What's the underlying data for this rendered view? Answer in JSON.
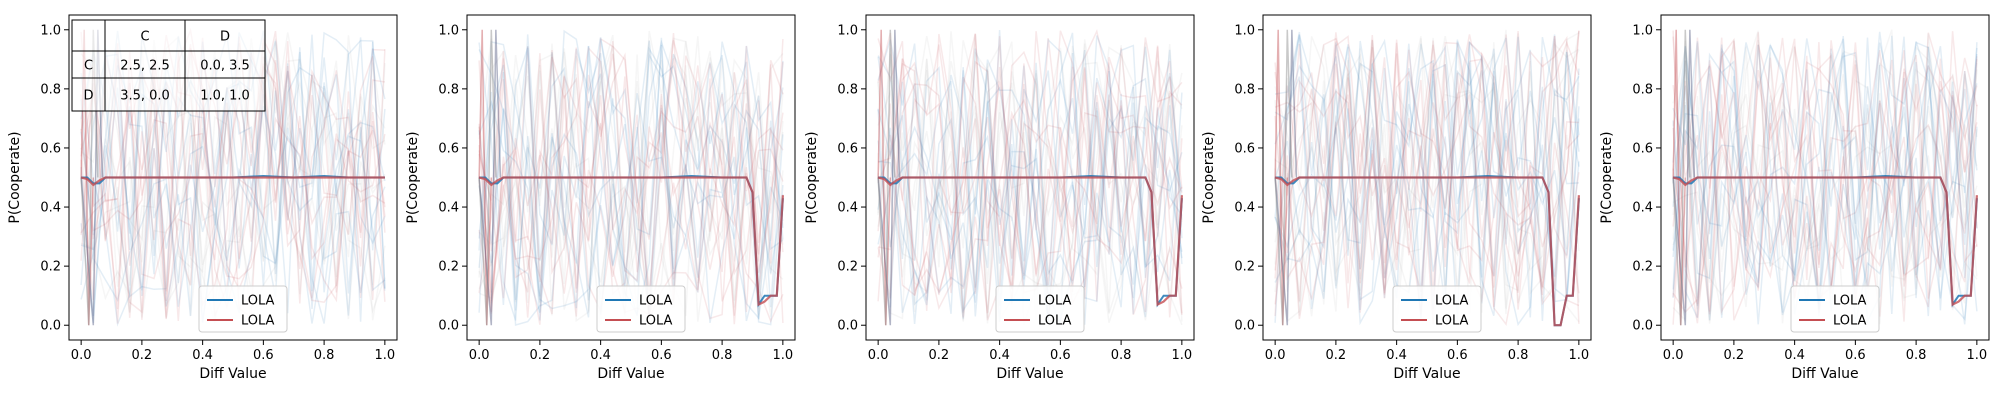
{
  "chart_data": [
    {
      "type": "line",
      "xlabel": "Diff Value",
      "ylabel": "P(Cooperate)",
      "xlim": [
        -0.04,
        1.04
      ],
      "ylim": [
        -0.05,
        1.05
      ],
      "xticks": [
        "0.0",
        "0.2",
        "0.4",
        "0.6",
        "0.8",
        "1.0"
      ],
      "yticks": [
        "0.0",
        "0.2",
        "0.4",
        "0.6",
        "0.8",
        "1.0"
      ],
      "grid": false,
      "legend_position": "bottom-center",
      "series": [
        {
          "name": "LOLA",
          "color": "#1f77b4",
          "x": [
            0.0,
            0.02,
            0.04,
            0.06,
            0.08,
            0.1,
            0.2,
            0.3,
            0.4,
            0.5,
            0.6,
            0.7,
            0.8,
            0.88,
            0.9,
            0.92,
            0.94,
            0.96,
            0.98,
            1.0
          ],
          "y": [
            0.5,
            0.5,
            0.48,
            0.48,
            0.5,
            0.5,
            0.5,
            0.5,
            0.5,
            0.5,
            0.505,
            0.5,
            0.505,
            0.5,
            0.5,
            0.5,
            0.5,
            0.5,
            0.5,
            0.5
          ]
        },
        {
          "name": "LOLA",
          "color": "#c44e52",
          "x": [
            0.0,
            0.02,
            0.04,
            0.06,
            0.08,
            0.1,
            0.2,
            0.3,
            0.4,
            0.5,
            0.6,
            0.7,
            0.8,
            0.88,
            0.9,
            0.92,
            0.94,
            0.96,
            0.98,
            1.0
          ],
          "y": [
            0.5,
            0.495,
            0.475,
            0.49,
            0.5,
            0.5,
            0.5,
            0.5,
            0.5,
            0.5,
            0.5,
            0.5,
            0.5,
            0.5,
            0.5,
            0.5,
            0.5,
            0.5,
            0.5,
            0.5
          ]
        }
      ],
      "payoff_table": {
        "header": [
          "",
          "C",
          "D"
        ],
        "rows": [
          [
            "C",
            "2.5, 2.5",
            "0.0, 3.5"
          ],
          [
            "D",
            "3.5, 0.0",
            "1.0, 1.0"
          ]
        ]
      }
    },
    {
      "type": "line",
      "xlabel": "Diff Value",
      "ylabel": "P(Cooperate)",
      "xlim": [
        -0.04,
        1.04
      ],
      "ylim": [
        -0.05,
        1.05
      ],
      "xticks": [
        "0.0",
        "0.2",
        "0.4",
        "0.6",
        "0.8",
        "1.0"
      ],
      "yticks": [
        "0.0",
        "0.2",
        "0.4",
        "0.6",
        "0.8",
        "1.0"
      ],
      "grid": false,
      "legend_position": "bottom-center",
      "series": [
        {
          "name": "LOLA",
          "color": "#1f77b4",
          "x": [
            0.0,
            0.02,
            0.04,
            0.06,
            0.08,
            0.1,
            0.2,
            0.3,
            0.4,
            0.5,
            0.6,
            0.7,
            0.8,
            0.88,
            0.9,
            0.92,
            0.94,
            0.96,
            0.98,
            1.0
          ],
          "y": [
            0.5,
            0.5,
            0.48,
            0.48,
            0.5,
            0.5,
            0.5,
            0.5,
            0.5,
            0.5,
            0.5,
            0.505,
            0.5,
            0.5,
            0.45,
            0.07,
            0.1,
            0.1,
            0.1,
            0.43
          ]
        },
        {
          "name": "LOLA",
          "color": "#c44e52",
          "x": [
            0.0,
            0.02,
            0.04,
            0.06,
            0.08,
            0.1,
            0.2,
            0.3,
            0.4,
            0.5,
            0.6,
            0.7,
            0.8,
            0.88,
            0.9,
            0.92,
            0.94,
            0.96,
            0.98,
            1.0
          ],
          "y": [
            0.5,
            0.495,
            0.475,
            0.49,
            0.5,
            0.5,
            0.5,
            0.5,
            0.5,
            0.5,
            0.5,
            0.5,
            0.5,
            0.5,
            0.45,
            0.07,
            0.08,
            0.1,
            0.1,
            0.44
          ]
        }
      ]
    },
    {
      "type": "line",
      "xlabel": "Diff Value",
      "ylabel": "P(Cooperate)",
      "xlim": [
        -0.04,
        1.04
      ],
      "ylim": [
        -0.05,
        1.05
      ],
      "xticks": [
        "0.0",
        "0.2",
        "0.4",
        "0.6",
        "0.8",
        "1.0"
      ],
      "yticks": [
        "0.0",
        "0.2",
        "0.4",
        "0.6",
        "0.8",
        "1.0"
      ],
      "grid": false,
      "legend_position": "bottom-center",
      "series": [
        {
          "name": "LOLA",
          "color": "#1f77b4",
          "x": [
            0.0,
            0.02,
            0.04,
            0.06,
            0.08,
            0.1,
            0.2,
            0.3,
            0.4,
            0.5,
            0.6,
            0.7,
            0.8,
            0.88,
            0.9,
            0.92,
            0.94,
            0.96,
            0.98,
            1.0
          ],
          "y": [
            0.5,
            0.5,
            0.48,
            0.48,
            0.5,
            0.5,
            0.5,
            0.5,
            0.5,
            0.5,
            0.5,
            0.505,
            0.5,
            0.5,
            0.45,
            0.07,
            0.1,
            0.1,
            0.1,
            0.43
          ]
        },
        {
          "name": "LOLA",
          "color": "#c44e52",
          "x": [
            0.0,
            0.02,
            0.04,
            0.06,
            0.08,
            0.1,
            0.2,
            0.3,
            0.4,
            0.5,
            0.6,
            0.7,
            0.8,
            0.88,
            0.9,
            0.92,
            0.94,
            0.96,
            0.98,
            1.0
          ],
          "y": [
            0.5,
            0.495,
            0.475,
            0.49,
            0.5,
            0.5,
            0.5,
            0.5,
            0.5,
            0.5,
            0.5,
            0.5,
            0.5,
            0.5,
            0.45,
            0.07,
            0.08,
            0.1,
            0.1,
            0.44
          ]
        }
      ]
    },
    {
      "type": "line",
      "xlabel": "Diff Value",
      "ylabel": "P(Cooperate)",
      "xlim": [
        -0.04,
        1.04
      ],
      "ylim": [
        -0.05,
        1.05
      ],
      "xticks": [
        "0.0",
        "0.2",
        "0.4",
        "0.6",
        "0.8",
        "1.0"
      ],
      "yticks": [
        "0.0",
        "0.2",
        "0.4",
        "0.6",
        "0.8",
        "1.0"
      ],
      "grid": false,
      "legend_position": "bottom-center",
      "series": [
        {
          "name": "LOLA",
          "color": "#1f77b4",
          "x": [
            0.0,
            0.02,
            0.04,
            0.06,
            0.08,
            0.1,
            0.2,
            0.3,
            0.4,
            0.5,
            0.6,
            0.7,
            0.8,
            0.88,
            0.9,
            0.92,
            0.94,
            0.96,
            0.98,
            1.0
          ],
          "y": [
            0.5,
            0.5,
            0.48,
            0.48,
            0.5,
            0.5,
            0.5,
            0.5,
            0.5,
            0.5,
            0.5,
            0.505,
            0.5,
            0.5,
            0.45,
            0.0,
            0.0,
            0.1,
            0.1,
            0.43
          ]
        },
        {
          "name": "LOLA",
          "color": "#c44e52",
          "x": [
            0.0,
            0.02,
            0.04,
            0.06,
            0.08,
            0.1,
            0.2,
            0.3,
            0.4,
            0.5,
            0.6,
            0.7,
            0.8,
            0.88,
            0.9,
            0.92,
            0.94,
            0.96,
            0.98,
            1.0
          ],
          "y": [
            0.5,
            0.495,
            0.475,
            0.49,
            0.5,
            0.5,
            0.5,
            0.5,
            0.5,
            0.5,
            0.5,
            0.5,
            0.5,
            0.5,
            0.45,
            0.0,
            0.0,
            0.1,
            0.1,
            0.44
          ]
        }
      ]
    },
    {
      "type": "line",
      "xlabel": "Diff Value",
      "ylabel": "P(Cooperate)",
      "xlim": [
        -0.04,
        1.04
      ],
      "ylim": [
        -0.05,
        1.05
      ],
      "xticks": [
        "0.0",
        "0.2",
        "0.4",
        "0.6",
        "0.8",
        "1.0"
      ],
      "yticks": [
        "0.0",
        "0.2",
        "0.4",
        "0.6",
        "0.8",
        "1.0"
      ],
      "grid": false,
      "legend_position": "bottom-center",
      "series": [
        {
          "name": "LOLA",
          "color": "#1f77b4",
          "x": [
            0.0,
            0.02,
            0.04,
            0.06,
            0.08,
            0.1,
            0.2,
            0.3,
            0.4,
            0.5,
            0.6,
            0.7,
            0.8,
            0.88,
            0.9,
            0.92,
            0.94,
            0.96,
            0.98,
            1.0
          ],
          "y": [
            0.5,
            0.5,
            0.48,
            0.48,
            0.5,
            0.5,
            0.5,
            0.5,
            0.5,
            0.5,
            0.5,
            0.505,
            0.5,
            0.5,
            0.45,
            0.07,
            0.1,
            0.1,
            0.1,
            0.43
          ]
        },
        {
          "name": "LOLA",
          "color": "#c44e52",
          "x": [
            0.0,
            0.02,
            0.04,
            0.06,
            0.08,
            0.1,
            0.2,
            0.3,
            0.4,
            0.5,
            0.6,
            0.7,
            0.8,
            0.88,
            0.9,
            0.92,
            0.94,
            0.96,
            0.98,
            1.0
          ],
          "y": [
            0.5,
            0.495,
            0.475,
            0.49,
            0.5,
            0.5,
            0.5,
            0.5,
            0.5,
            0.5,
            0.5,
            0.5,
            0.5,
            0.5,
            0.45,
            0.07,
            0.08,
            0.1,
            0.1,
            0.44
          ]
        }
      ]
    }
  ]
}
